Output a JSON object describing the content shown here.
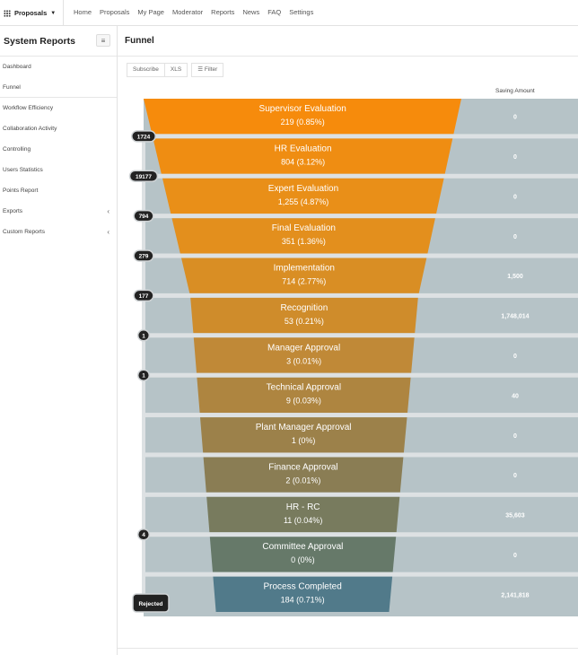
{
  "topbar": {
    "brand": "Proposals",
    "brand_icon": "grid-icon",
    "nav": [
      "Home",
      "Proposals",
      "My Page",
      "Moderator",
      "Reports",
      "News",
      "FAQ",
      "Settings"
    ]
  },
  "sidebar": {
    "title": "System Reports",
    "toggle_icon": "menu-icon",
    "items": [
      {
        "label": "Dashboard",
        "submenu": false
      },
      {
        "label": "Funnel",
        "submenu": false,
        "active": true
      },
      {
        "label": "Workflow Efficiency",
        "submenu": false
      },
      {
        "label": "Collaboration Activity",
        "submenu": false
      },
      {
        "label": "Controlling",
        "submenu": false
      },
      {
        "label": "Users Statistics",
        "submenu": false
      },
      {
        "label": "Points Report",
        "submenu": false
      },
      {
        "label": "Exports",
        "submenu": true
      },
      {
        "label": "Custom Reports",
        "submenu": true
      }
    ]
  },
  "main": {
    "title": "Funnel",
    "toolbar": {
      "subscribe": "Subscribe",
      "xls": "XLS",
      "filter": "Filter"
    },
    "saving_header": "Saving Amount"
  },
  "funnel": {
    "stages": [
      {
        "name": "Supervisor Evaluation",
        "count": "219 (0.85%)",
        "saving": "0",
        "color": "#f68b0c"
      },
      {
        "name": "HR Evaluation",
        "count": "804 (3.12%)",
        "saving": "0",
        "color": "#ef8d12"
      },
      {
        "name": "Expert Evaluation",
        "count": "1,255 (4.87%)",
        "saving": "0",
        "color": "#e98f18"
      },
      {
        "name": "Final Evaluation",
        "count": "351 (1.36%)",
        "saving": "0",
        "color": "#e38f1d"
      },
      {
        "name": "Implementation",
        "count": "714 (2.77%)",
        "saving": "1,500",
        "color": "#d98e24"
      },
      {
        "name": "Recognition",
        "count": "53 (0.21%)",
        "saving": "1,748,014",
        "color": "#cf8c2b"
      },
      {
        "name": "Manager Approval",
        "count": "3 (0.01%)",
        "saving": "0",
        "color": "#c08937"
      },
      {
        "name": "Technical Approval",
        "count": "9 (0.03%)",
        "saving": "40",
        "color": "#ae8540"
      },
      {
        "name": "Plant Manager Approval",
        "count": "1 (0%)",
        "saving": "0",
        "color": "#9c814a"
      },
      {
        "name": "Finance Approval",
        "count": "2 (0.01%)",
        "saving": "0",
        "color": "#8a7d54"
      },
      {
        "name": "HR - RC",
        "count": "11 (0.04%)",
        "saving": "35,603",
        "color": "#787b5e"
      },
      {
        "name": "Committee Approval",
        "count": "0 (0%)",
        "saving": "0",
        "color": "#667969"
      },
      {
        "name": "Process Completed",
        "count": "184 (0.71%)",
        "saving": "2,141,818",
        "color": "#517a8a"
      }
    ],
    "rejections": [
      {
        "after_stage": 0,
        "label": "1724"
      },
      {
        "after_stage": 1,
        "label": "19177"
      },
      {
        "after_stage": 2,
        "label": "794"
      },
      {
        "after_stage": 3,
        "label": "279"
      },
      {
        "after_stage": 4,
        "label": "177"
      },
      {
        "after_stage": 5,
        "label": "1"
      },
      {
        "after_stage": 6,
        "label": "1"
      },
      {
        "after_stage": 10,
        "label": "4"
      }
    ],
    "rejected_label": "Rejected",
    "saving_color": "#b6c3c7",
    "separator_color": "#dde1e3",
    "pill_color": "#222222"
  }
}
